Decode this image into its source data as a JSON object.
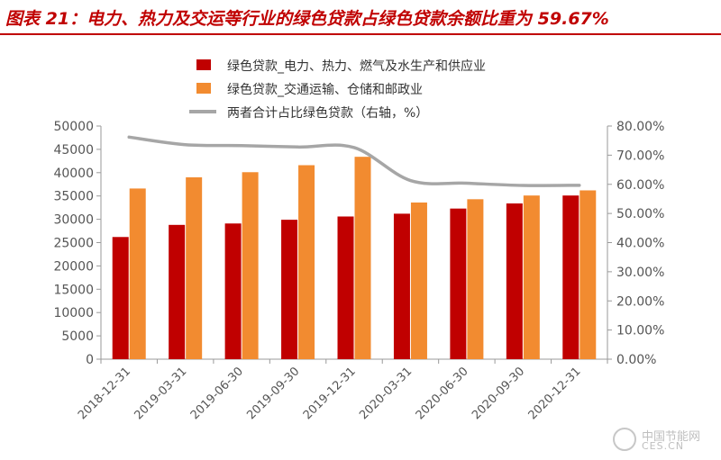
{
  "title": "图表 21：电力、热力及交运等行业的绿色贷款占绿色贷款余额比重为 59.67%",
  "watermark": {
    "line1": "中国节能网",
    "line2": "CES.CN"
  },
  "colors": {
    "bar1": "#c00000",
    "bar2": "#f28b30",
    "line": "#a6a6a6",
    "accent": "#c00000"
  },
  "chart_data": {
    "type": "bar",
    "categories": [
      "2018-12-31",
      "2019-03-31",
      "2019-06-30",
      "2019-09-30",
      "2019-12-31",
      "2020-03-31",
      "2020-06-30",
      "2020-09-30",
      "2020-12-31"
    ],
    "series": [
      {
        "name": "绿色贷款_电力、热力、燃气及水生产和供应业",
        "kind": "bar",
        "axis": "left",
        "values": [
          26200,
          28800,
          29100,
          29900,
          30600,
          31200,
          32300,
          33400,
          35100
        ]
      },
      {
        "name": "绿色贷款_交通运输、仓储和邮政业",
        "kind": "bar",
        "axis": "left",
        "values": [
          36600,
          39000,
          40100,
          41600,
          43400,
          33600,
          34300,
          35100,
          36200
        ]
      },
      {
        "name": "两者合计占比绿色贷款（右轴，%）",
        "kind": "line",
        "axis": "right",
        "values": [
          76.2,
          73.6,
          73.3,
          72.8,
          72.6,
          61.3,
          60.4,
          59.6,
          59.67
        ]
      }
    ],
    "ylim": [
      0,
      50000
    ],
    "yticks": [
      "0",
      "5000",
      "10000",
      "15000",
      "20000",
      "25000",
      "30000",
      "35000",
      "40000",
      "45000",
      "50000"
    ],
    "y2lim": [
      0,
      80
    ],
    "y2ticks": [
      "0.00%",
      "10.00%",
      "20.00%",
      "30.00%",
      "40.00%",
      "50.00%",
      "60.00%",
      "70.00%",
      "80.00%"
    ],
    "grid": false,
    "legend": "top-center"
  }
}
